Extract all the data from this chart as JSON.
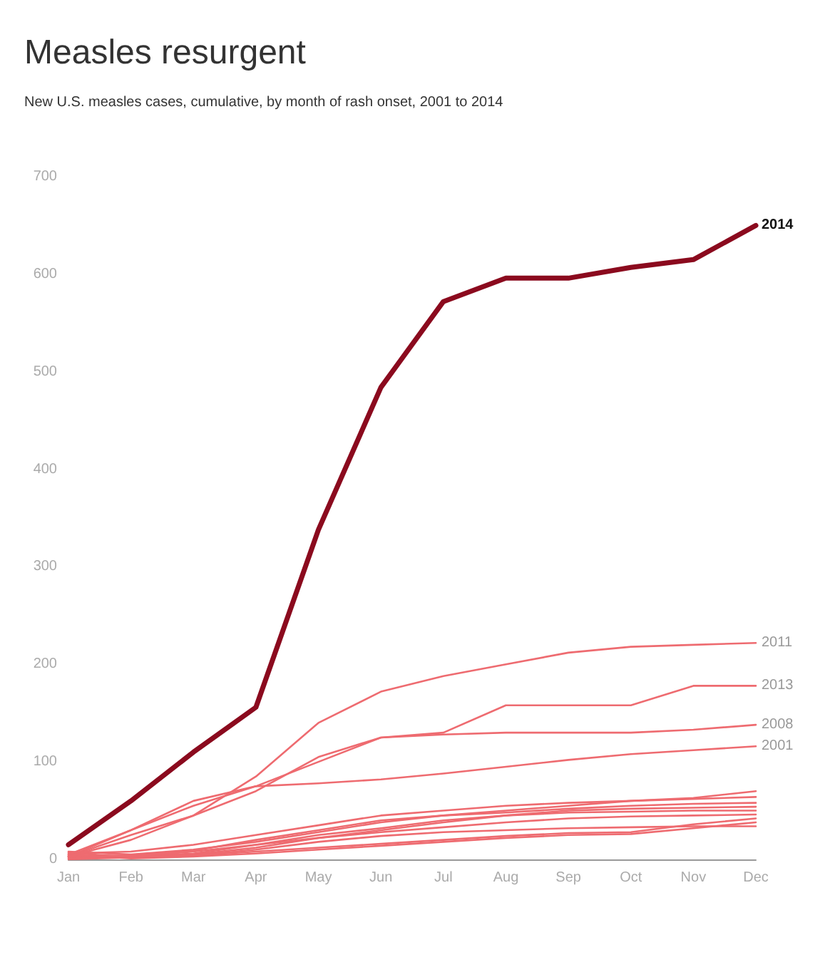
{
  "chart_data": {
    "type": "line",
    "title": "Measles resurgent",
    "subtitle": "New U.S. measles cases, cumulative, by month of rash onset, 2001 to 2014",
    "categories": [
      "Jan",
      "Feb",
      "Mar",
      "Apr",
      "May",
      "Jun",
      "Jul",
      "Aug",
      "Sep",
      "Oct",
      "Nov",
      "Dec"
    ],
    "ylim": [
      0,
      700
    ],
    "yticks": [
      0,
      100,
      200,
      300,
      400,
      500,
      600,
      700
    ],
    "grid": false,
    "legend": false,
    "marker": "none",
    "line_style": "solid",
    "series": [
      {
        "color": "#ee6b70",
        "values": [
          8,
          5,
          10,
          18,
          28,
          38,
          45,
          50,
          55,
          60,
          63,
          70
        ]
      },
      {
        "color": "#ee6b70",
        "values": [
          6,
          8,
          15,
          25,
          35,
          45,
          50,
          55,
          58,
          60,
          62,
          64
        ]
      },
      {
        "color": "#ee6b70",
        "values": [
          4,
          4,
          9,
          20,
          30,
          40,
          45,
          48,
          52,
          55,
          57,
          58
        ]
      },
      {
        "color": "#ee6b70",
        "values": [
          2,
          3,
          6,
          15,
          25,
          32,
          40,
          45,
          50,
          52,
          53,
          54
        ]
      },
      {
        "color": "#ee6b70",
        "values": [
          0,
          2,
          5,
          12,
          22,
          30,
          38,
          45,
          48,
          49,
          50,
          50
        ]
      },
      {
        "color": "#ee6b70",
        "values": [
          1,
          3,
          8,
          15,
          22,
          28,
          33,
          38,
          42,
          44,
          45,
          46
        ]
      },
      {
        "color": "#ee6b70",
        "values": [
          3,
          2,
          4,
          8,
          12,
          16,
          20,
          24,
          27,
          28,
          36,
          42
        ]
      },
      {
        "color": "#ee6b70",
        "values": [
          5,
          1,
          3,
          6,
          10,
          14,
          18,
          22,
          25,
          26,
          32,
          38
        ]
      },
      {
        "color": "#ee6b70",
        "values": [
          7,
          2,
          4,
          10,
          18,
          24,
          28,
          30,
          32,
          33,
          34,
          34
        ]
      },
      {
        "name": "2001",
        "color": "#ee6b70",
        "values": [
          3,
          30,
          60,
          75,
          78,
          82,
          88,
          95,
          102,
          108,
          112,
          116
        ]
      },
      {
        "name": "2008",
        "color": "#ee6b70",
        "values": [
          5,
          30,
          55,
          75,
          100,
          125,
          128,
          130,
          130,
          130,
          133,
          138
        ]
      },
      {
        "name": "2013",
        "color": "#ee6b70",
        "values": [
          3,
          25,
          45,
          70,
          105,
          125,
          130,
          158,
          158,
          158,
          178,
          178
        ]
      },
      {
        "name": "2011",
        "color": "#ee6b70",
        "values": [
          3,
          20,
          45,
          85,
          140,
          172,
          188,
          200,
          212,
          218,
          220,
          222
        ]
      },
      {
        "name": "2014",
        "color": "#8b0a1e",
        "values": [
          15,
          60,
          110,
          156,
          338,
          484,
          572,
          596,
          596,
          607,
          615,
          650
        ]
      }
    ]
  }
}
